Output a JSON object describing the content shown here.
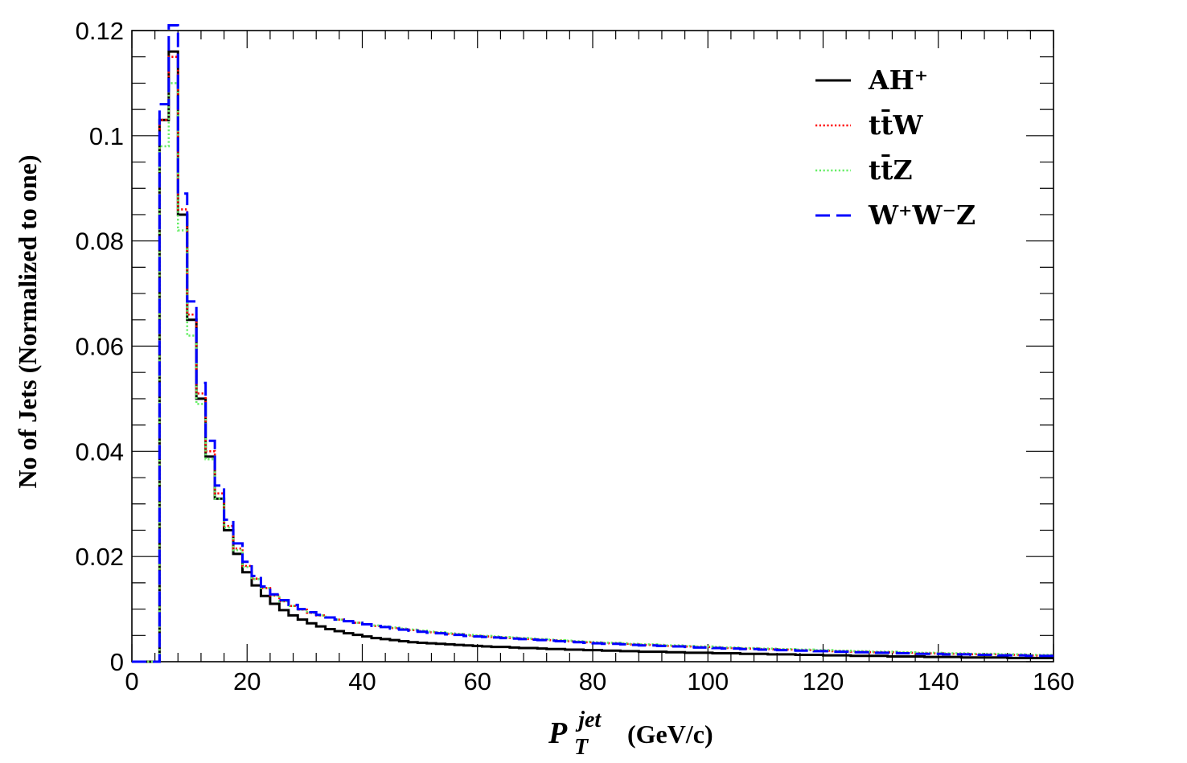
{
  "chart_data": {
    "type": "line",
    "style": "step-histogram",
    "title": "",
    "xlabel": {
      "main": "P",
      "subscript": "T",
      "superscript": "jet",
      "unit": "(GeV/c)"
    },
    "ylabel": "No of Jets (Normalized to one)",
    "xlim": [
      0,
      160
    ],
    "ylim": [
      0,
      0.12
    ],
    "x_ticks": [
      "0",
      "20",
      "40",
      "60",
      "80",
      "100",
      "120",
      "140",
      "160"
    ],
    "y_ticks": [
      "0",
      "0.02",
      "0.04",
      "0.06",
      "0.08",
      "0.1",
      "0.12"
    ],
    "legend_position": "top-right",
    "bin_width": 1.6,
    "x_start": 0,
    "series": [
      {
        "name": "AH⁺",
        "color": "#000000",
        "style": "solid",
        "values": [
          0,
          0,
          0,
          0.103,
          0.116,
          0.085,
          0.065,
          0.05,
          0.039,
          0.031,
          0.025,
          0.0205,
          0.017,
          0.0145,
          0.0125,
          0.011,
          0.0098,
          0.0088,
          0.008,
          0.0073,
          0.0067,
          0.0062,
          0.0058,
          0.0054,
          0.0051,
          0.0048,
          0.0045,
          0.0043,
          0.0041,
          0.0039,
          0.0037,
          0.0036,
          0.0035,
          0.0034,
          0.0033,
          0.0032,
          0.0031,
          0.003,
          0.0029,
          0.0028,
          0.0028,
          0.0027,
          0.0026,
          0.0026,
          0.0025,
          0.0024,
          0.0024,
          0.0023,
          0.0023,
          0.0022,
          0.0022,
          0.0021,
          0.0021,
          0.002,
          0.002,
          0.0019,
          0.0019,
          0.0019,
          0.0018,
          0.0018,
          0.0017,
          0.0017,
          0.0017,
          0.0016,
          0.0016,
          0.0016,
          0.0015,
          0.0015,
          0.0015,
          0.0014,
          0.0014,
          0.0014,
          0.0013,
          0.0013,
          0.0013,
          0.0012,
          0.0012,
          0.0012,
          0.0011,
          0.0011,
          0.0011,
          0.0011,
          0.001,
          0.001,
          0.001,
          0.001,
          0.0009,
          0.0009,
          0.0009,
          0.0009,
          0.0008,
          0.0008,
          0.0008,
          0.0008,
          0.0008,
          0.0007,
          0.0007,
          0.0007,
          0.0007,
          0.0007
        ]
      },
      {
        "name": "tt̄W",
        "color": "#ff0000",
        "style": "dotted",
        "values": [
          0,
          0,
          0,
          0.103,
          0.115,
          0.086,
          0.066,
          0.051,
          0.04,
          0.032,
          0.0258,
          0.0215,
          0.0182,
          0.0158,
          0.014,
          0.0126,
          0.0115,
          0.0106,
          0.0099,
          0.0093,
          0.0088,
          0.0084,
          0.008,
          0.0077,
          0.0074,
          0.0071,
          0.0068,
          0.0066,
          0.0064,
          0.0062,
          0.006,
          0.0058,
          0.0056,
          0.0055,
          0.0053,
          0.0052,
          0.005,
          0.0049,
          0.0048,
          0.0047,
          0.0046,
          0.0045,
          0.0044,
          0.0043,
          0.0042,
          0.0041,
          0.004,
          0.0039,
          0.0038,
          0.0037,
          0.0036,
          0.0035,
          0.0035,
          0.0034,
          0.0033,
          0.0032,
          0.0032,
          0.0031,
          0.003,
          0.003,
          0.0029,
          0.0028,
          0.0028,
          0.0027,
          0.0026,
          0.0026,
          0.0025,
          0.0025,
          0.0024,
          0.0024,
          0.0023,
          0.0023,
          0.0022,
          0.0022,
          0.0021,
          0.0021,
          0.002,
          0.002,
          0.0019,
          0.0019,
          0.0018,
          0.0018,
          0.0018,
          0.0017,
          0.0017,
          0.0016,
          0.0016,
          0.0016,
          0.0015,
          0.0015,
          0.0015,
          0.0014,
          0.0014,
          0.0014,
          0.0013,
          0.0013,
          0.0013,
          0.0012,
          0.0012,
          0.0012
        ]
      },
      {
        "name": "tt̄Z",
        "color": "#66ee66",
        "style": "dotted",
        "values": [
          0,
          0,
          0,
          0.098,
          0.11,
          0.082,
          0.062,
          0.049,
          0.0385,
          0.031,
          0.0255,
          0.0212,
          0.018,
          0.0157,
          0.014,
          0.0126,
          0.0115,
          0.0106,
          0.0099,
          0.0093,
          0.0088,
          0.0084,
          0.008,
          0.0077,
          0.0074,
          0.0071,
          0.0069,
          0.0067,
          0.0065,
          0.0063,
          0.0061,
          0.0059,
          0.0057,
          0.0056,
          0.0054,
          0.0053,
          0.0051,
          0.005,
          0.0049,
          0.0048,
          0.0047,
          0.0046,
          0.0045,
          0.0044,
          0.0043,
          0.0042,
          0.0041,
          0.004,
          0.0039,
          0.0038,
          0.0037,
          0.0036,
          0.0036,
          0.0035,
          0.0034,
          0.0033,
          0.0033,
          0.0032,
          0.0031,
          0.0031,
          0.003,
          0.0029,
          0.0029,
          0.0028,
          0.0027,
          0.0027,
          0.0026,
          0.0026,
          0.0025,
          0.0025,
          0.0024,
          0.0024,
          0.0023,
          0.0023,
          0.0022,
          0.0022,
          0.0021,
          0.0021,
          0.002,
          0.002,
          0.0019,
          0.0019,
          0.0019,
          0.0018,
          0.0018,
          0.0017,
          0.0017,
          0.0017,
          0.0016,
          0.0016,
          0.0016,
          0.0015,
          0.0015,
          0.0015,
          0.0014,
          0.0014,
          0.0014,
          0.0013,
          0.0013,
          0.0013
        ]
      },
      {
        "name": "W⁺W⁻Z",
        "color": "#0000ff",
        "style": "dashed",
        "values": [
          0,
          0,
          0,
          0.106,
          0.121,
          0.089,
          0.0685,
          0.053,
          0.042,
          0.0335,
          0.027,
          0.0225,
          0.019,
          0.0163,
          0.0143,
          0.0128,
          0.0117,
          0.0108,
          0.01,
          0.0094,
          0.0089,
          0.0084,
          0.008,
          0.0077,
          0.0074,
          0.0071,
          0.0068,
          0.0066,
          0.0063,
          0.0061,
          0.0059,
          0.0057,
          0.0055,
          0.0054,
          0.0052,
          0.0051,
          0.0049,
          0.0048,
          0.0047,
          0.0046,
          0.0045,
          0.0044,
          0.0043,
          0.0042,
          0.0041,
          0.004,
          0.0039,
          0.0038,
          0.0037,
          0.0036,
          0.0035,
          0.0034,
          0.0034,
          0.0033,
          0.0032,
          0.0031,
          0.0031,
          0.003,
          0.0029,
          0.0029,
          0.0028,
          0.0027,
          0.0027,
          0.0026,
          0.0025,
          0.0025,
          0.0024,
          0.0024,
          0.0023,
          0.0023,
          0.0022,
          0.0022,
          0.0021,
          0.0021,
          0.002,
          0.002,
          0.0019,
          0.0019,
          0.0018,
          0.0018,
          0.0017,
          0.0017,
          0.0017,
          0.0016,
          0.0016,
          0.0015,
          0.0015,
          0.0015,
          0.0014,
          0.0014,
          0.0014,
          0.0013,
          0.0013,
          0.0013,
          0.0012,
          0.0012,
          0.0012,
          0.0011,
          0.0011,
          0.0011
        ]
      }
    ]
  }
}
